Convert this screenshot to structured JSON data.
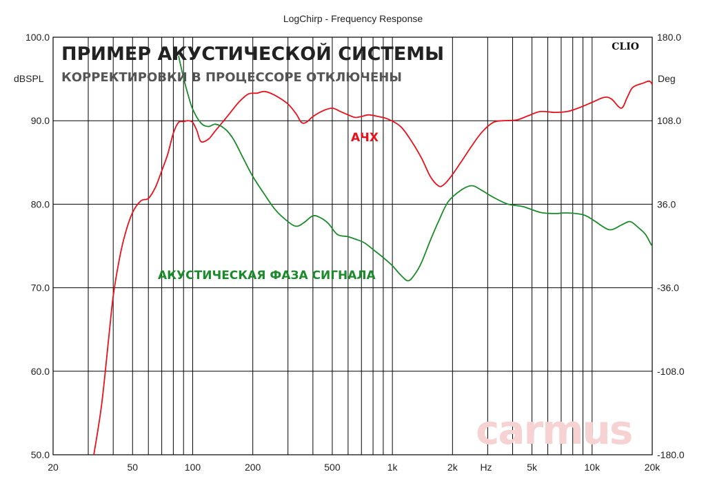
{
  "chart_data": {
    "type": "line",
    "title": "LogChirp - Frequency Response",
    "heading": "ПРИМЕР АКУСТИЧЕСКОЙ СИСТЕМЫ",
    "subheading": "КОРРЕКТИРОВКИ В ПРОЦЕССОРЕ ОТКЛЮЧЕНЫ",
    "brand": "CLIO",
    "watermark": "carmus",
    "xlabel": "Hz",
    "ylabel_left": "dBSPL",
    "ylabel_right": "Deg",
    "x_scale": "log",
    "xlim": [
      20,
      20000
    ],
    "ylim_left": [
      50,
      100
    ],
    "ylim_right": [
      -180,
      180
    ],
    "grid": true,
    "x_tick_labels": [
      {
        "value": 20,
        "label": "20"
      },
      {
        "value": 50,
        "label": "50"
      },
      {
        "value": 100,
        "label": "100"
      },
      {
        "value": 200,
        "label": "200"
      },
      {
        "value": 500,
        "label": "500"
      },
      {
        "value": 1000,
        "label": "1k"
      },
      {
        "value": 2000,
        "label": "2k"
      },
      {
        "value": 5000,
        "label": "5k"
      },
      {
        "value": 10000,
        "label": "10k"
      },
      {
        "value": 20000,
        "label": "20k"
      }
    ],
    "y_tick_labels_left": [
      "100.0",
      "90.0",
      "80.0",
      "70.0",
      "60.0",
      "50.0"
    ],
    "y_tick_labels_right": [
      "180.0",
      "108.0",
      "36.0",
      "-36.0",
      "-108.0",
      "-180.0"
    ],
    "series": [
      {
        "name": "АЧХ",
        "axis": "left",
        "color": "#e8101a",
        "points": [
          [
            32,
            50
          ],
          [
            35,
            56
          ],
          [
            38,
            64
          ],
          [
            40,
            69
          ],
          [
            43,
            73.5
          ],
          [
            46,
            76.5
          ],
          [
            50,
            79
          ],
          [
            55,
            80.4
          ],
          [
            60,
            80.7
          ],
          [
            65,
            82
          ],
          [
            70,
            84
          ],
          [
            75,
            86
          ],
          [
            80,
            88.5
          ],
          [
            85,
            89.8
          ],
          [
            90,
            89.9
          ],
          [
            95,
            90
          ],
          [
            100,
            89.8
          ],
          [
            105,
            88.8
          ],
          [
            110,
            87.5
          ],
          [
            120,
            87.8
          ],
          [
            130,
            88.8
          ],
          [
            150,
            90.6
          ],
          [
            170,
            92.2
          ],
          [
            190,
            93.2
          ],
          [
            210,
            93.3
          ],
          [
            230,
            93.5
          ],
          [
            260,
            93
          ],
          [
            300,
            92
          ],
          [
            330,
            90.8
          ],
          [
            350,
            89.8
          ],
          [
            370,
            89.8
          ],
          [
            400,
            90.5
          ],
          [
            450,
            91.2
          ],
          [
            500,
            91.5
          ],
          [
            550,
            91.1
          ],
          [
            600,
            90.7
          ],
          [
            650,
            90.4
          ],
          [
            700,
            90.5
          ],
          [
            760,
            90.7
          ],
          [
            850,
            90.5
          ],
          [
            950,
            90.2
          ],
          [
            1100,
            89.3
          ],
          [
            1250,
            87.5
          ],
          [
            1400,
            85.5
          ],
          [
            1550,
            83.3
          ],
          [
            1700,
            82.2
          ],
          [
            1800,
            82.3
          ],
          [
            1950,
            83.2
          ],
          [
            2200,
            85
          ],
          [
            2500,
            87
          ],
          [
            2800,
            88.6
          ],
          [
            3200,
            89.8
          ],
          [
            3600,
            90
          ],
          [
            4200,
            90.1
          ],
          [
            4800,
            90.6
          ],
          [
            5500,
            91.1
          ],
          [
            6500,
            91
          ],
          [
            7500,
            91.1
          ],
          [
            8500,
            91.5
          ],
          [
            10000,
            92.2
          ],
          [
            11500,
            92.8
          ],
          [
            12500,
            92.6
          ],
          [
            14000,
            91.5
          ],
          [
            15000,
            92.8
          ],
          [
            16000,
            94
          ],
          [
            18000,
            94.5
          ],
          [
            19500,
            94.7
          ],
          [
            20500,
            93.7
          ],
          [
            21500,
            92
          ]
        ]
      },
      {
        "name": "АКУСТИЧЕСКАЯ ФАЗА СИГНАЛА",
        "axis": "right",
        "color": "#1a8a2a",
        "points": [
          [
            85,
            164
          ],
          [
            90,
            145
          ],
          [
            95,
            130
          ],
          [
            100,
            118
          ],
          [
            110,
            106
          ],
          [
            120,
            103
          ],
          [
            130,
            105
          ],
          [
            145,
            101
          ],
          [
            160,
            92
          ],
          [
            180,
            75
          ],
          [
            200,
            60
          ],
          [
            230,
            44
          ],
          [
            260,
            31
          ],
          [
            300,
            21
          ],
          [
            330,
            17
          ],
          [
            360,
            20
          ],
          [
            400,
            26
          ],
          [
            440,
            24
          ],
          [
            480,
            19
          ],
          [
            530,
            10
          ],
          [
            600,
            8
          ],
          [
            650,
            6
          ],
          [
            720,
            3
          ],
          [
            800,
            -3
          ],
          [
            900,
            -10
          ],
          [
            1000,
            -17
          ],
          [
            1100,
            -25
          ],
          [
            1200,
            -30
          ],
          [
            1300,
            -24
          ],
          [
            1400,
            -14
          ],
          [
            1550,
            5
          ],
          [
            1700,
            21
          ],
          [
            1900,
            38
          ],
          [
            2200,
            48
          ],
          [
            2500,
            52
          ],
          [
            2800,
            48
          ],
          [
            3200,
            42
          ],
          [
            3800,
            36
          ],
          [
            4500,
            34
          ],
          [
            5500,
            29
          ],
          [
            6500,
            28
          ],
          [
            7500,
            28.5
          ],
          [
            9000,
            27
          ],
          [
            10000,
            23
          ],
          [
            11500,
            16
          ],
          [
            12500,
            14
          ],
          [
            14000,
            18
          ],
          [
            15500,
            21
          ],
          [
            17000,
            16
          ],
          [
            18500,
            10
          ],
          [
            20000,
            0
          ],
          [
            21500,
            -4
          ]
        ]
      }
    ]
  }
}
